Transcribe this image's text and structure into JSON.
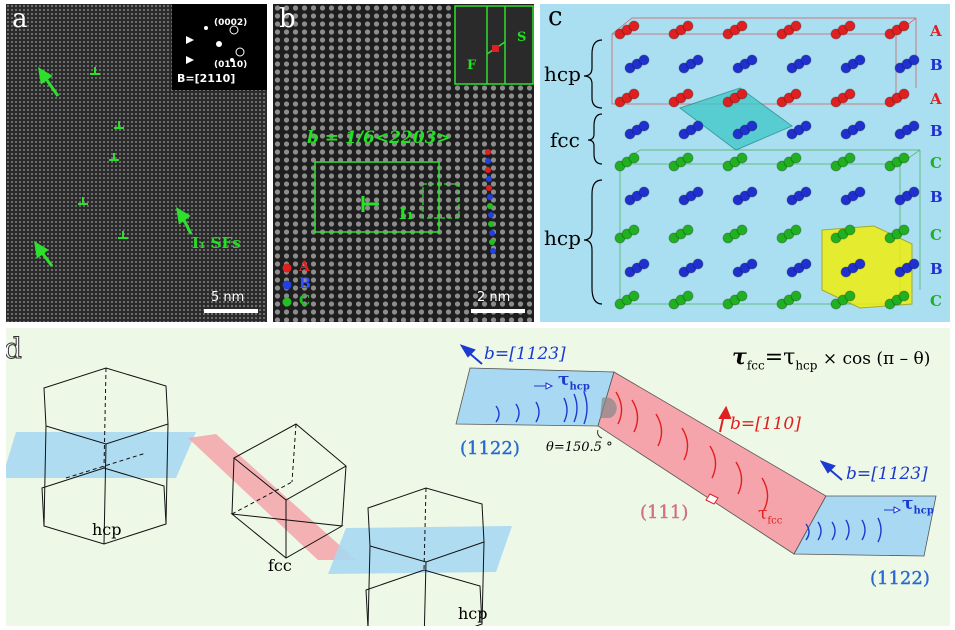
{
  "panel_a": {
    "label": "a",
    "zone_axis": "B=[2̅110]",
    "zone_axis_display": "B=[2110]",
    "spot1": "(0002)",
    "spot2": "(0110)",
    "sf_label": "I₁ SFs",
    "scale": "5 nm"
  },
  "panel_b": {
    "label": "b",
    "burgers": "b = 1/6<2203>",
    "partial": "I₁",
    "inset_s": "S",
    "inset_f": "F",
    "legend": [
      "A",
      "B",
      "C"
    ],
    "scale": "2 nm",
    "colors": {
      "A": "#e02020",
      "B": "#2040e0",
      "C": "#20c020"
    }
  },
  "panel_c": {
    "label": "c",
    "phases": [
      "hcp",
      "fcc",
      "hcp"
    ],
    "layers": [
      "A",
      "B",
      "A",
      "B",
      "C",
      "B",
      "C",
      "B",
      "C"
    ],
    "colors": {
      "A": "#e02020",
      "B": "#2030d0",
      "C": "#20b020",
      "bg": "#a9dff0"
    }
  },
  "panel_d": {
    "label": "d",
    "equation_tau_fcc": "τ",
    "equation_fcc_sub": "fcc",
    "equation_rest": "=τ",
    "equation_hcp_sub": "hcp",
    "equation_tail": " × cos (π – θ)",
    "b_left": "b=[1123]",
    "b_mid": "b=[110]",
    "b_right": "b=[1123]",
    "tau_hcp": "τ",
    "tau_hcp_sub": "hcp",
    "tau_fcc": "τ",
    "tau_fcc_sub": "fcc",
    "plane_left": "(1122)",
    "plane_mid": "(111)",
    "plane_right": "(1122)",
    "theta": "θ=150.5 °",
    "cell_labels": [
      "hcp",
      "fcc",
      "hcp"
    ],
    "colors": {
      "blue_plane": "#a9d8f2",
      "red_plane": "#f4a4aa",
      "arrow": "#1a3ad0",
      "red": "#e02020"
    }
  }
}
